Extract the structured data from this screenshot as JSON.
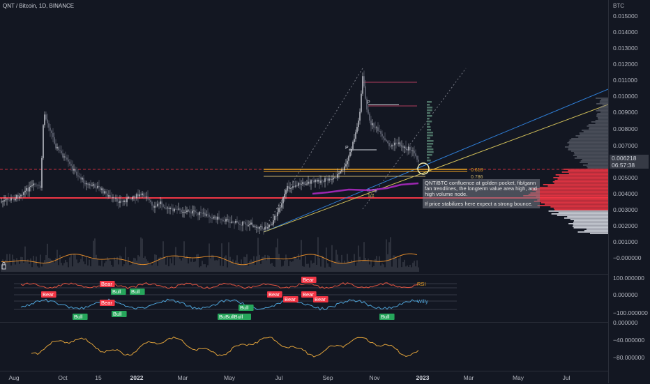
{
  "header": {
    "title": "QNT / Bitcoin, 1D, BINANCE"
  },
  "price_axis": {
    "unit": "BTC",
    "labels": [
      "0.015000",
      "0.014000",
      "0.013000",
      "0.012000",
      "0.011000",
      "0.010000",
      "0.009000",
      "0.008000",
      "0.007000",
      "0.005000",
      "0.004000",
      "0.003000",
      "0.002000",
      "0.001000",
      "−0.000000"
    ],
    "last_price": "0.006218",
    "countdown": "06:57:38"
  },
  "indicator_axis": {
    "labels": [
      "100.000000",
      "0.000000",
      "−100.000000"
    ]
  },
  "osc_axis": {
    "labels": [
      "0.000000",
      "−40.000000",
      "−80.000000"
    ]
  },
  "time_axis": {
    "labels": [
      {
        "text": "Aug",
        "bold": false
      },
      {
        "text": "Oct",
        "bold": false
      },
      {
        "text": "15",
        "bold": false
      },
      {
        "text": "2022",
        "bold": true
      },
      {
        "text": "Mar",
        "bold": false
      },
      {
        "text": "May",
        "bold": false
      },
      {
        "text": "Jul",
        "bold": false
      },
      {
        "text": "Sep",
        "bold": false
      },
      {
        "text": "Nov",
        "bold": false
      },
      {
        "text": "2023",
        "bold": true
      },
      {
        "text": "Mar",
        "bold": false
      },
      {
        "text": "May",
        "bold": false
      },
      {
        "text": "Jul",
        "bold": false
      }
    ]
  },
  "fib_labels": {
    "golden": "0.618",
    "f786": "0.786",
    "gann_1x1": "1/1",
    "gann_1x2": "0.75"
  },
  "pivot_labels": {
    "p1": "P",
    "p2": "P"
  },
  "indicator_tags": {
    "bear": "Bear",
    "bull": "Bull",
    "bulls": "BuBullBull",
    "rsi_label": "RSI",
    "willy_label": "Willy"
  },
  "annotation": {
    "line1": "QNT/BTC confluence at golden pocket, fib/gann fan trendlines, the longterm value area high, and high volume node.",
    "line2": "If price stabilizes here expect a strong bounce."
  },
  "colors": {
    "background": "#131722",
    "up": "#d1d4dc",
    "support": "#f23645",
    "fib": "#f5a623",
    "gann": "#d4c25a",
    "trend_blue": "#2f7fd8",
    "volume_ma": "#e08a2a",
    "vp_red": "#f23645",
    "vp_white": "#d8dbe3"
  }
}
